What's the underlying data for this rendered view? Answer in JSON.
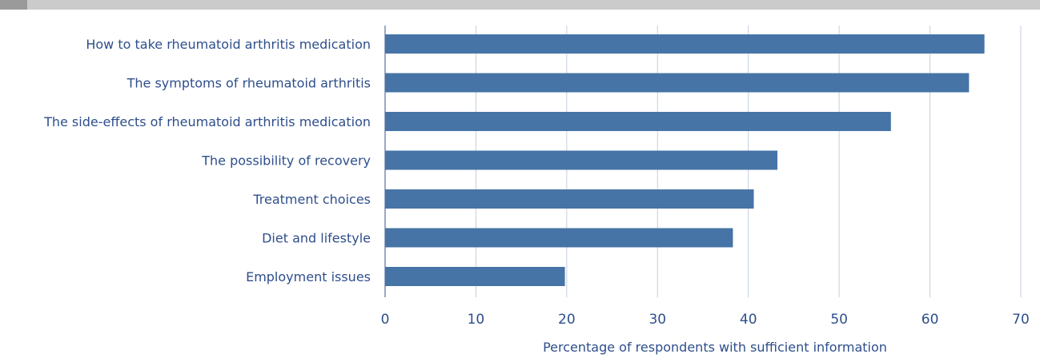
{
  "chart_data": {
    "type": "bar",
    "orientation": "horizontal",
    "categories": [
      "How to take rheumatoid arthritis medication",
      "The symptoms of rheumatoid arthritis",
      "The side-effects of rheumatoid arthritis medication",
      "The possibility of recovery",
      "Treatment choices",
      "Diet and lifestyle",
      "Employment issues"
    ],
    "values": [
      66,
      64.3,
      55.7,
      43.2,
      40.6,
      38.3,
      19.8
    ],
    "title": "",
    "xlabel": "Percentage of respondents with sufficient information",
    "ylabel": "",
    "xlim": [
      0,
      70
    ],
    "xticks": [
      0,
      10,
      20,
      30,
      40,
      50,
      60,
      70
    ],
    "grid": "vertical",
    "bar_color": "#4674a6",
    "label_color": "#2e4e8c",
    "grid_color": "#c4cedc",
    "axis_color": "#3a4f8a"
  }
}
